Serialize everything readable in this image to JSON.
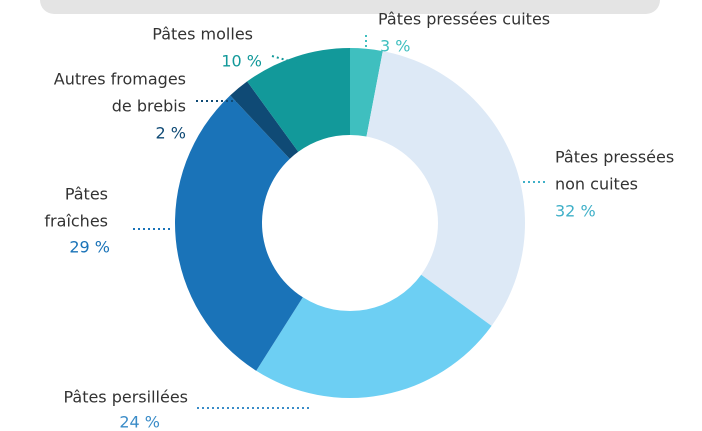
{
  "chart_data": {
    "type": "donut",
    "categories": [
      [
        "Pâtes pressées cuites"
      ],
      [
        "Pâtes pressées",
        "non cuites"
      ],
      [
        "Pâtes persillées"
      ],
      [
        "Pâtes",
        "fraîches"
      ],
      [
        "Autres fromages",
        "de brebis"
      ],
      [
        "Pâtes molles"
      ]
    ],
    "values": [
      3,
      32,
      24,
      29,
      2,
      10
    ],
    "value_labels": [
      "3 %",
      "32 %",
      "24 %",
      "29 %",
      "2 %",
      "10 %"
    ],
    "colors": [
      "#3fbfbf",
      "#dde9f6",
      "#6dcff3",
      "#1a73b8",
      "#0f4a75",
      "#12999a"
    ],
    "label_colors": [
      "#3fbfbf",
      "#3fb0c8",
      "#3a8cc8",
      "#1a73b8",
      "#0f4a75",
      "#12999a"
    ]
  }
}
